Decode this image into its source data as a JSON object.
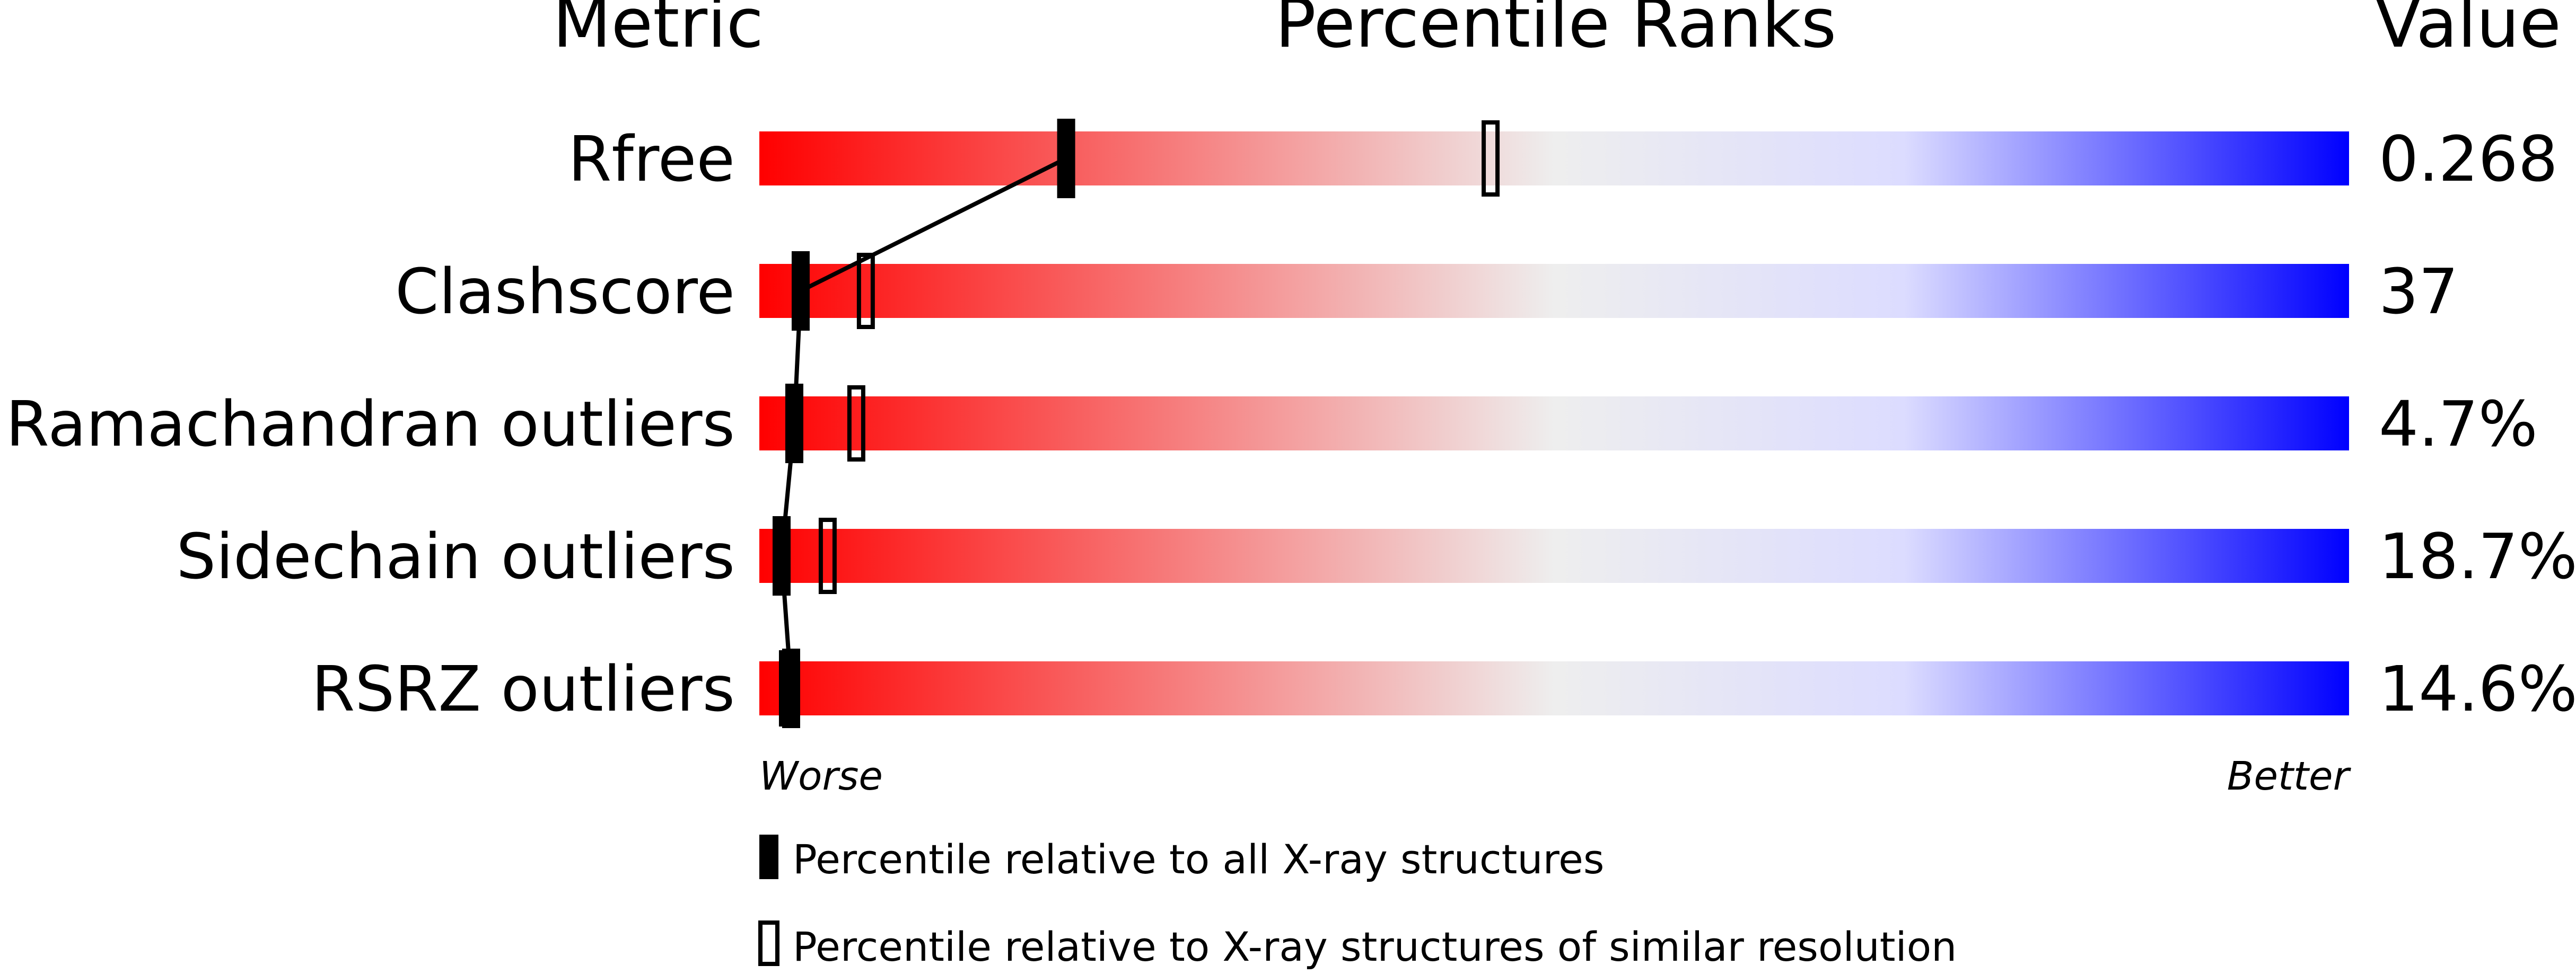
{
  "chart_data": {
    "type": "percentile-slider",
    "title": "Percentile Ranks",
    "column_headers": {
      "metric": "Metric",
      "ranks": "Percentile Ranks",
      "value": "Value"
    },
    "axis": {
      "min": 0,
      "max": 100,
      "left_label": "Worse",
      "right_label": "Better"
    },
    "gradient_colors": {
      "worse": "#ff0000",
      "middle": "#eeeeee",
      "light_blue": "#dcdcff",
      "better": "#0000ff"
    },
    "marker_color": "#000000",
    "metrics": [
      {
        "name": "Rfree",
        "value": "0.268",
        "percentile_all": 19.3,
        "percentile_similar": 46.0
      },
      {
        "name": "Clashscore",
        "value": "37",
        "percentile_all": 2.6,
        "percentile_similar": 6.7
      },
      {
        "name": "Ramachandran outliers",
        "value": "4.7%",
        "percentile_all": 2.2,
        "percentile_similar": 6.1
      },
      {
        "name": "Sidechain outliers",
        "value": "18.7%",
        "percentile_all": 1.4,
        "percentile_similar": 4.3
      },
      {
        "name": "RSRZ outliers",
        "value": "14.6%",
        "percentile_all": 2.0,
        "percentile_similar": 1.8
      }
    ],
    "legend": [
      {
        "marker": "filled",
        "label": "Percentile relative to all X-ray structures"
      },
      {
        "marker": "outline",
        "label": "Percentile relative to X-ray structures of similar resolution"
      }
    ]
  }
}
